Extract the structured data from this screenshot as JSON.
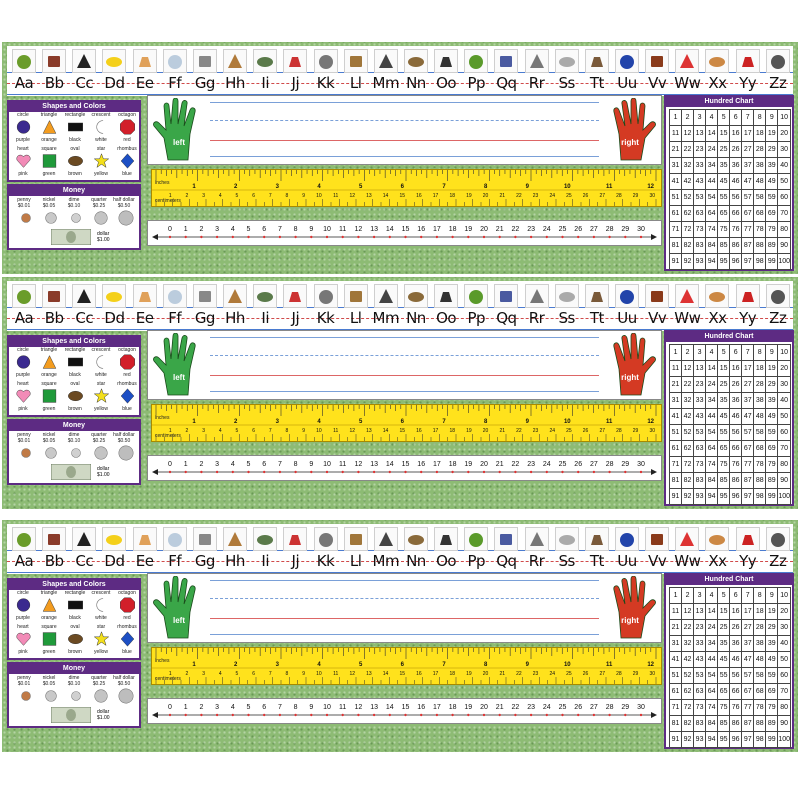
{
  "letters": [
    "Aa",
    "Bb",
    "Cc",
    "Dd",
    "Ee",
    "Ff",
    "Gg",
    "Hh",
    "Ii",
    "Jj",
    "Kk",
    "Ll",
    "Mm",
    "Nn",
    "Oo",
    "Pp",
    "Qq",
    "Rr",
    "Ss",
    "Tt",
    "Uu",
    "Vv",
    "Ww",
    "Xx",
    "Yy",
    "Zz"
  ],
  "letter_pictures": [
    "apple-icon",
    "books-icon",
    "comb-icon",
    "duck-icon",
    "eggs-icon",
    "fishbowl-icon",
    "goat-icon",
    "horse-icon",
    "iguana-icon",
    "jacks-icon",
    "key-icon",
    "ladder-icon",
    "magnifier-icon",
    "nest-icon",
    "ostrich-icon",
    "peas-icon",
    "quilt-icon",
    "rhino-icon",
    "sailboat-icon",
    "timer-icon",
    "umbrella-icon",
    "violin-icon",
    "watermelon-icon",
    "xylophone-icon",
    "yoyo-icon",
    "zebra-icon"
  ],
  "shapes_colors": {
    "title": "Shapes and Colors",
    "shapes": [
      {
        "name": "circle",
        "color_name": "purple",
        "color": "#3b2a8f",
        "shape": "circle"
      },
      {
        "name": "triangle",
        "color_name": "orange",
        "color": "#f39c1f",
        "shape": "triangle"
      },
      {
        "name": "rectangle",
        "color_name": "black",
        "color": "#111111",
        "shape": "rectangle"
      },
      {
        "name": "crescent",
        "color_name": "white",
        "color": "#ffffff",
        "shape": "crescent"
      },
      {
        "name": "octagon",
        "color_name": "red",
        "color": "#d21f2a",
        "shape": "octagon"
      },
      {
        "name": "heart",
        "color_name": "pink",
        "color": "#f28bb7",
        "shape": "heart"
      },
      {
        "name": "square",
        "color_name": "green",
        "color": "#1f9a3a",
        "shape": "square"
      },
      {
        "name": "oval",
        "color_name": "brown",
        "color": "#6b4a22",
        "shape": "oval"
      },
      {
        "name": "star",
        "color_name": "yellow",
        "color": "#f3df1b",
        "shape": "star"
      },
      {
        "name": "rhombus",
        "color_name": "blue",
        "color": "#1d4fc4",
        "shape": "rhombus"
      }
    ]
  },
  "money": {
    "title": "Money",
    "coins": [
      {
        "name": "penny",
        "value": "$0.01"
      },
      {
        "name": "nickel",
        "value": "$0.05"
      },
      {
        "name": "dime",
        "value": "$0.10"
      },
      {
        "name": "quarter",
        "value": "$0.25"
      },
      {
        "name": "half dollar",
        "value": "$0.50"
      }
    ],
    "bill": {
      "name": "dollar",
      "value": "$1.00"
    }
  },
  "hands": {
    "left_label": "left",
    "right_label": "right",
    "left_color": "#3aa648",
    "right_color": "#d43a23"
  },
  "ruler": {
    "inches_label": "inches",
    "centimeters_label": "centimeters",
    "inches_max": 12,
    "centimeters_max": 30
  },
  "number_line": {
    "min": 0,
    "max": 30
  },
  "hundred_chart": {
    "title": "Hundred Chart",
    "start": 1,
    "end": 100
  },
  "colors": {
    "purple": "#5d2b83",
    "ruler_yellow": "#ffe21c",
    "grass": "#8dbb74"
  }
}
